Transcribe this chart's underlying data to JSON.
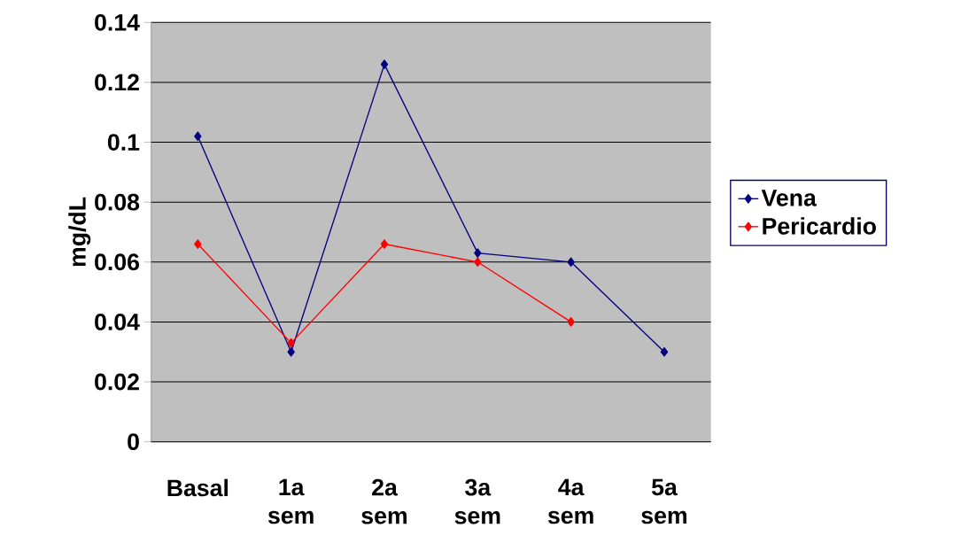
{
  "chart_data": {
    "type": "line",
    "ylabel": "mg/dL",
    "categories": [
      "Basal",
      "1a sem",
      "2a sem",
      "3a sem",
      "4a sem",
      "5a sem"
    ],
    "series": [
      {
        "name": "Vena",
        "color": "#000080",
        "values": [
          0.102,
          0.03,
          0.126,
          0.063,
          0.06,
          0.03
        ]
      },
      {
        "name": "Pericardio",
        "color": "#ff0000",
        "values": [
          0.066,
          0.033,
          0.066,
          0.06,
          0.04,
          null
        ]
      }
    ],
    "ylim": [
      0,
      0.14
    ],
    "yticks": [
      0,
      0.02,
      0.04,
      0.06,
      0.08,
      0.1,
      0.12,
      0.14
    ],
    "grid": "y",
    "legend": "right",
    "marker": "diamond",
    "line_style": "solid"
  }
}
